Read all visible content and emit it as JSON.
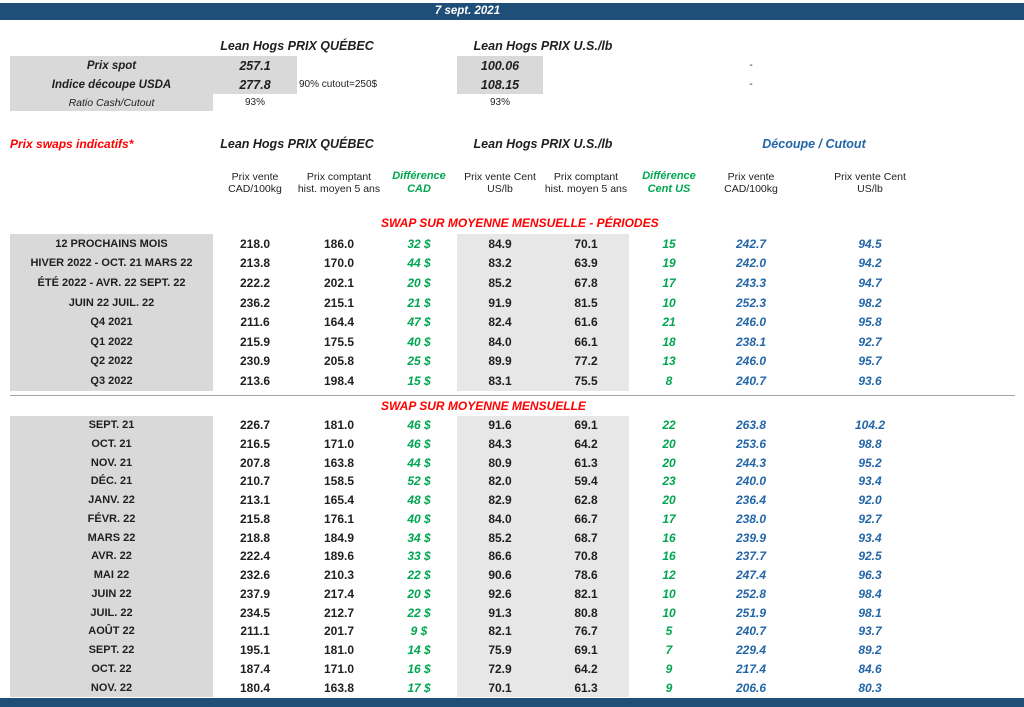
{
  "header": {
    "date": "7 sept. 2021"
  },
  "colors": {
    "header_bar": "#1F4E79",
    "label_bg": "#D9D9D9",
    "accent_green": "#00A651",
    "accent_blue": "#2366A8",
    "accent_red": "#FF0000"
  },
  "spot": {
    "quebec_title": "Lean Hogs PRIX QUÉBEC",
    "us_title": "Lean Hogs PRIX U.S./lb",
    "rows": [
      {
        "label": "Prix spot",
        "qc": "257.1",
        "note": "",
        "us": "100.06",
        "cutout": "-"
      },
      {
        "label": "Indice découpe USDA",
        "qc": "277.8",
        "note": "90% cutout=250$",
        "us": "108.15",
        "cutout": "-"
      },
      {
        "label": "Ratio Cash/Cutout",
        "qc": "93%",
        "note": "",
        "us": "93%",
        "cutout": ""
      }
    ]
  },
  "swaps": {
    "title": "Prix swaps indicatifs*",
    "groups": {
      "quebec": "Lean Hogs PRIX QUÉBEC",
      "us": "Lean Hogs PRIX U.S./lb",
      "cutout": "Découpe / Cutout"
    },
    "column_headers": [
      "Prix vente CAD/100kg",
      "Prix comptant hist. moyen 5 ans",
      "Différence CAD",
      "Prix vente Cent US/lb",
      "Prix comptant hist. moyen 5 ans",
      "Différence Cent US",
      "Prix vente CAD/100kg",
      "Prix vente Cent US/lb"
    ],
    "sections": [
      {
        "title": "SWAP SUR MOYENNE MENSUELLE - PÉRIODES",
        "rows": [
          {
            "label": "12 PROCHAINS MOIS",
            "values": [
              "218.0",
              "186.0",
              "32 $",
              "84.9",
              "70.1",
              "15",
              "242.7",
              "94.5"
            ]
          },
          {
            "label": "HIVER 2022 - OCT. 21 MARS 22",
            "values": [
              "213.8",
              "170.0",
              "44 $",
              "83.2",
              "63.9",
              "19",
              "242.0",
              "94.2"
            ]
          },
          {
            "label": "ÉTÉ 2022 - AVR. 22 SEPT. 22",
            "values": [
              "222.2",
              "202.1",
              "20 $",
              "85.2",
              "67.8",
              "17",
              "243.3",
              "94.7"
            ]
          },
          {
            "label": "JUIN 22 JUIL. 22",
            "values": [
              "236.2",
              "215.1",
              "21 $",
              "91.9",
              "81.5",
              "10",
              "252.3",
              "98.2"
            ]
          },
          {
            "label": "Q4 2021",
            "values": [
              "211.6",
              "164.4",
              "47 $",
              "82.4",
              "61.6",
              "21",
              "246.0",
              "95.8"
            ]
          },
          {
            "label": "Q1 2022",
            "values": [
              "215.9",
              "175.5",
              "40 $",
              "84.0",
              "66.1",
              "18",
              "238.1",
              "92.7"
            ]
          },
          {
            "label": "Q2 2022",
            "values": [
              "230.9",
              "205.8",
              "25 $",
              "89.9",
              "77.2",
              "13",
              "246.0",
              "95.7"
            ]
          },
          {
            "label": "Q3 2022",
            "values": [
              "213.6",
              "198.4",
              "15 $",
              "83.1",
              "75.5",
              "8",
              "240.7",
              "93.6"
            ]
          }
        ]
      },
      {
        "title": "SWAP SUR MOYENNE MENSUELLE",
        "rows": [
          {
            "label": "SEPT. 21",
            "values": [
              "226.7",
              "181.0",
              "46 $",
              "91.6",
              "69.1",
              "22",
              "263.8",
              "104.2"
            ]
          },
          {
            "label": "OCT. 21",
            "values": [
              "216.5",
              "171.0",
              "46 $",
              "84.3",
              "64.2",
              "20",
              "253.6",
              "98.8"
            ]
          },
          {
            "label": "NOV. 21",
            "values": [
              "207.8",
              "163.8",
              "44 $",
              "80.9",
              "61.3",
              "20",
              "244.3",
              "95.2"
            ]
          },
          {
            "label": "DÉC. 21",
            "values": [
              "210.7",
              "158.5",
              "52 $",
              "82.0",
              "59.4",
              "23",
              "240.0",
              "93.4"
            ]
          },
          {
            "label": "JANV. 22",
            "values": [
              "213.1",
              "165.4",
              "48 $",
              "82.9",
              "62.8",
              "20",
              "236.4",
              "92.0"
            ]
          },
          {
            "label": "FÉVR. 22",
            "values": [
              "215.8",
              "176.1",
              "40 $",
              "84.0",
              "66.7",
              "17",
              "238.0",
              "92.7"
            ]
          },
          {
            "label": "MARS 22",
            "values": [
              "218.8",
              "184.9",
              "34 $",
              "85.2",
              "68.7",
              "16",
              "239.9",
              "93.4"
            ]
          },
          {
            "label": "AVR. 22",
            "values": [
              "222.4",
              "189.6",
              "33 $",
              "86.6",
              "70.8",
              "16",
              "237.7",
              "92.5"
            ]
          },
          {
            "label": "MAI 22",
            "values": [
              "232.6",
              "210.3",
              "22 $",
              "90.6",
              "78.6",
              "12",
              "247.4",
              "96.3"
            ]
          },
          {
            "label": "JUIN 22",
            "values": [
              "237.9",
              "217.4",
              "20 $",
              "92.6",
              "82.1",
              "10",
              "252.8",
              "98.4"
            ]
          },
          {
            "label": "JUIL. 22",
            "values": [
              "234.5",
              "212.7",
              "22 $",
              "91.3",
              "80.8",
              "10",
              "251.9",
              "98.1"
            ]
          },
          {
            "label": "AOÛT 22",
            "values": [
              "211.1",
              "201.7",
              "9 $",
              "82.1",
              "76.7",
              "5",
              "240.7",
              "93.7"
            ]
          },
          {
            "label": "SEPT. 22",
            "values": [
              "195.1",
              "181.0",
              "14 $",
              "75.9",
              "69.1",
              "7",
              "229.4",
              "89.2"
            ]
          },
          {
            "label": "OCT. 22",
            "values": [
              "187.4",
              "171.0",
              "16 $",
              "72.9",
              "64.2",
              "9",
              "217.4",
              "84.6"
            ]
          },
          {
            "label": "NOV. 22",
            "values": [
              "180.4",
              "163.8",
              "17 $",
              "70.1",
              "61.3",
              "9",
              "206.6",
              "80.3"
            ]
          }
        ]
      }
    ]
  }
}
